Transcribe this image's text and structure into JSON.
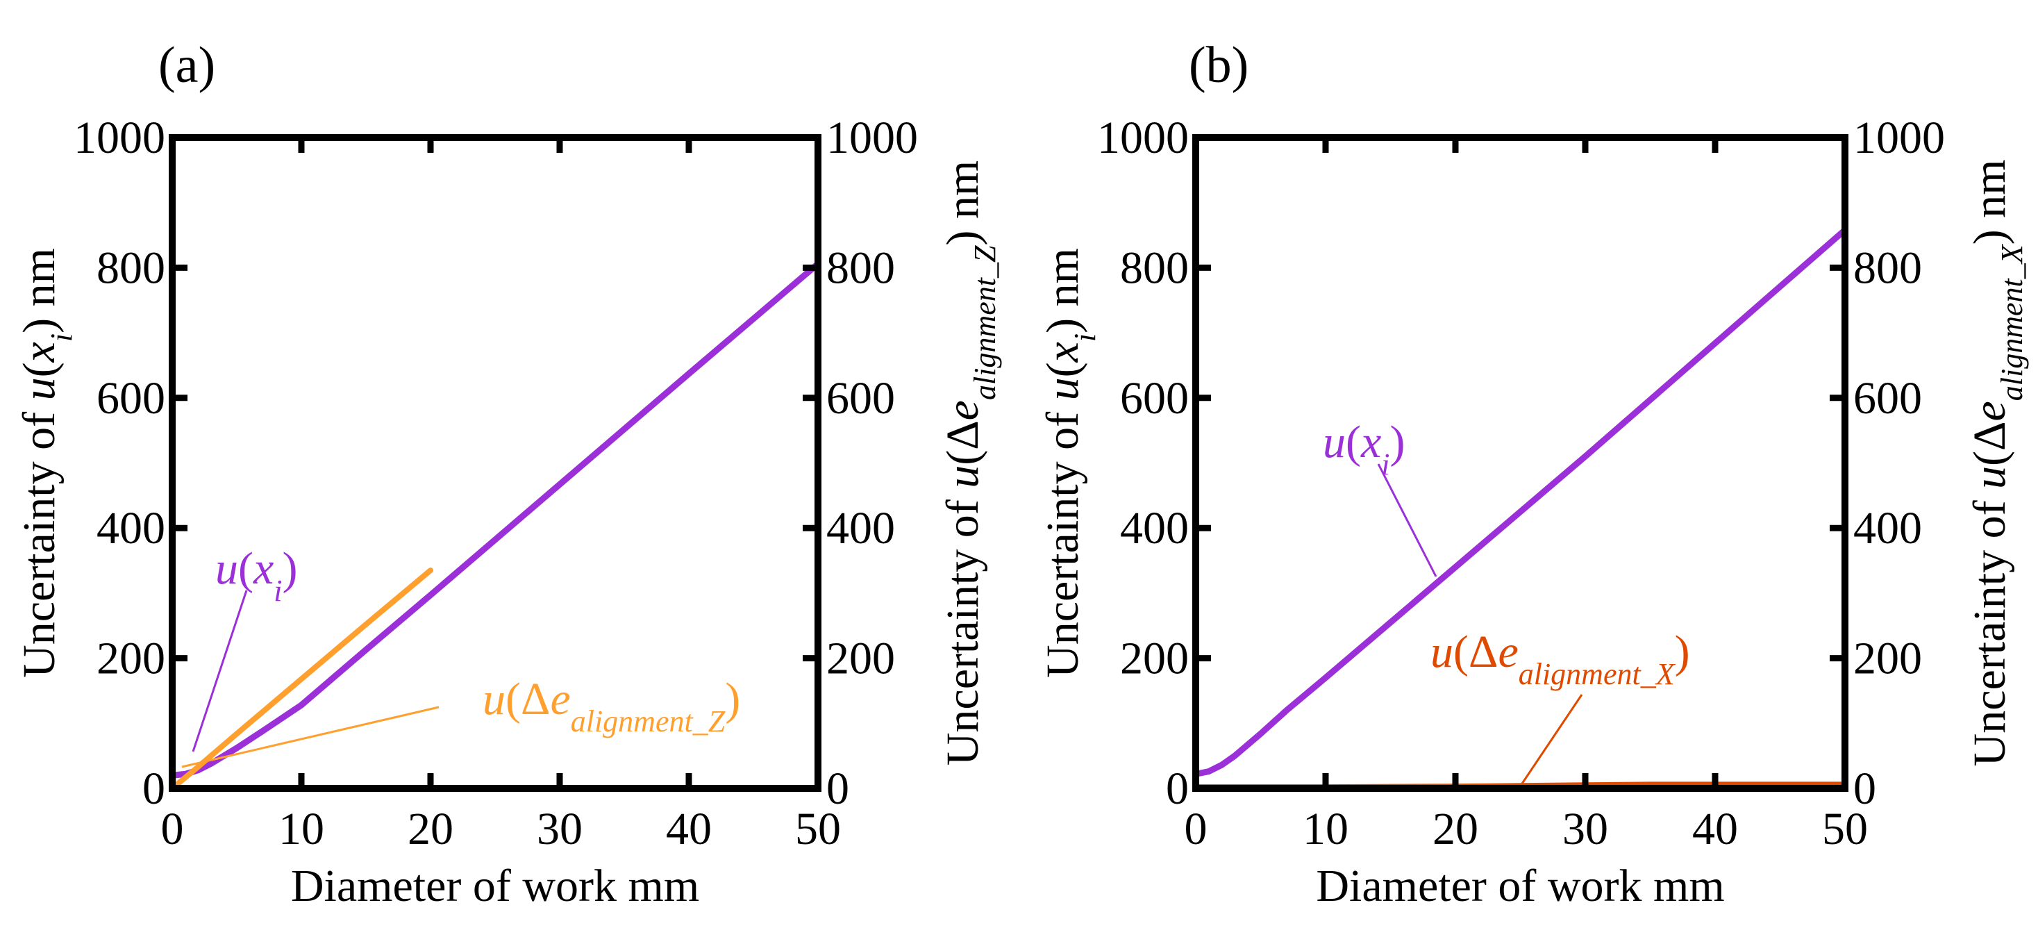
{
  "panels": {
    "a": {
      "panel_label": "(a)"
    },
    "b": {
      "panel_label": "(b)"
    }
  },
  "colors": {
    "u_xi": "#9b30d9",
    "u_align_z": "#ff9f2e",
    "u_align_x": "#e04a00",
    "axes": "#000000"
  },
  "chart_data": [
    {
      "id": "a",
      "type": "line",
      "title": "(a)",
      "xlabel": "Diameter of work mm",
      "ylabel_left": {
        "pre": "Uncertainty of ",
        "u": "u",
        "open": "(",
        "var": "x",
        "sub": "i",
        "close": ")",
        "unit": " nm"
      },
      "ylabel_right": {
        "pre": "Uncertainty of  ",
        "u": "u",
        "open": "(",
        "delta": "Δ",
        "var": "e",
        "sub": "alignment_Z",
        "close": ")",
        "unit": " nm"
      },
      "xlim": [
        0,
        50
      ],
      "ylim_left": [
        0,
        1000
      ],
      "ylim_right": [
        0,
        1000
      ],
      "xticks": [
        0,
        10,
        20,
        30,
        40,
        50
      ],
      "yticks_left": [
        0,
        200,
        400,
        600,
        800,
        1000
      ],
      "yticks_right": [
        0,
        200,
        400,
        600,
        800,
        1000
      ],
      "series": [
        {
          "name": "u(x_i)",
          "label": {
            "u": "u",
            "open": "(",
            "var": "x",
            "sub": "i",
            "close": ")"
          },
          "color_key": "u_xi",
          "x": [
            0,
            1,
            2,
            3,
            5,
            7,
            10,
            15,
            20,
            30,
            40,
            50
          ],
          "y": [
            20,
            22,
            28,
            38,
            62,
            88,
            128,
            213,
            297,
            467,
            637,
            806
          ]
        },
        {
          "name": "u(Δe_alignment_Z)",
          "label": {
            "u": "u",
            "open": "(",
            "delta": "Δ",
            "var": "e",
            "sub": "alignment_Z",
            "close": ")"
          },
          "color_key": "u_align_z",
          "x": [
            0,
            2,
            5,
            10,
            15,
            20
          ],
          "y": [
            0,
            33,
            84,
            168,
            252,
            335
          ]
        }
      ]
    },
    {
      "id": "b",
      "type": "line",
      "title": "(b)",
      "xlabel": "Diameter of work mm",
      "ylabel_left": {
        "pre": "Uncertainty of ",
        "u": "u",
        "open": "(",
        "var": "x",
        "sub": "i",
        "close": ")",
        "unit": " nm"
      },
      "ylabel_right": {
        "pre": "Uncertainty of  ",
        "u": "u",
        "open": "(",
        "delta": "Δ",
        "var": "e",
        "sub": "alignment_X",
        "close": ")",
        "unit": " nm"
      },
      "xlim": [
        0,
        50
      ],
      "ylim_left": [
        0,
        1000
      ],
      "ylim_right": [
        0,
        1000
      ],
      "xticks": [
        0,
        10,
        20,
        30,
        40,
        50
      ],
      "yticks_left": [
        0,
        200,
        400,
        600,
        800,
        1000
      ],
      "yticks_right": [
        0,
        200,
        400,
        600,
        800,
        1000
      ],
      "series": [
        {
          "name": "u(x_i)",
          "label": {
            "u": "u",
            "open": "(",
            "var": "x",
            "sub": "i",
            "close": ")"
          },
          "color_key": "u_xi",
          "x": [
            0,
            1,
            2,
            3,
            5,
            7,
            10,
            15,
            20,
            30,
            40,
            50
          ],
          "y": [
            22,
            26,
            36,
            50,
            84,
            120,
            170,
            255,
            340,
            510,
            684,
            858
          ]
        },
        {
          "name": "u(Δe_alignment_X)",
          "label": {
            "u": "u",
            "open": "(",
            "delta": "Δ",
            "var": "e",
            "sub": "alignment_X",
            "close": ")"
          },
          "color_key": "u_align_x",
          "x": [
            0,
            10,
            20,
            25,
            30,
            35,
            40,
            50
          ],
          "y": [
            2,
            2,
            3,
            4,
            5,
            6,
            6,
            6
          ]
        }
      ]
    }
  ]
}
